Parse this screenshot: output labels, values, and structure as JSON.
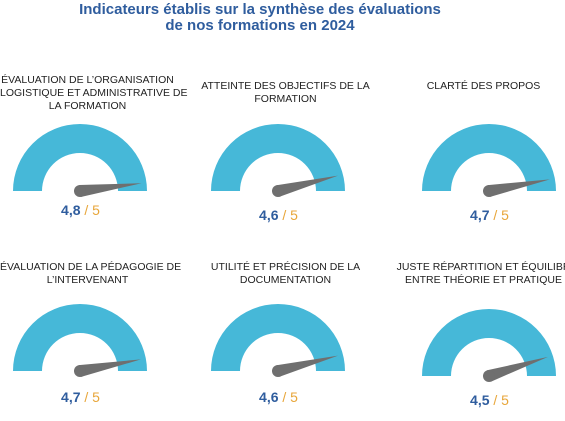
{
  "title_lines": [
    "Indicateurs établis sur la synthèse des évaluations",
    "de nos formations en 2024"
  ],
  "colors": {
    "arc": "#46b8d8",
    "needle": "#6f6f6f",
    "value": "#2f5d9e",
    "max": "#e8a63a",
    "title": "#2f5d9e"
  },
  "chart_data": [
    {
      "type": "gauge",
      "title_lines": [
        "ÉVALUATION DE L’ORGANISATION",
        "LOGISTIQUE ET ADMINISTRATIVE DE",
        "LA FORMATION"
      ],
      "value": 4.8,
      "value_label": "4,8",
      "max": 5,
      "max_label": "5",
      "separator": "/"
    },
    {
      "type": "gauge",
      "title_lines": [
        "ATTEINTE DES OBJECTIFS DE LA",
        "FORMATION"
      ],
      "value": 4.6,
      "value_label": "4,6",
      "max": 5,
      "max_label": "5",
      "separator": "/"
    },
    {
      "type": "gauge",
      "title_lines": [
        "CLARTÉ DES PROPOS"
      ],
      "value": 4.7,
      "value_label": "4,7",
      "max": 5,
      "max_label": "5",
      "separator": "/"
    },
    {
      "type": "gauge",
      "title_lines": [
        "ÉVALUATION DE LA PÉDAGOGIE DE",
        "L’INTERVENANT"
      ],
      "value": 4.7,
      "value_label": "4,7",
      "max": 5,
      "max_label": "5",
      "separator": "/"
    },
    {
      "type": "gauge",
      "title_lines": [
        "UTILITÉ ET PRÉCISION DE LA",
        "DOCUMENTATION"
      ],
      "value": 4.6,
      "value_label": "4,6",
      "max": 5,
      "max_label": "5",
      "separator": "/"
    },
    {
      "type": "gauge",
      "title_lines": [
        "JUSTE RÉPARTITION ET ÉQUILIBR",
        "ENTRE THÉORIE ET PRATIQUE"
      ],
      "value": 4.5,
      "value_label": "4,5",
      "max": 5,
      "max_label": "5",
      "separator": "/"
    }
  ]
}
